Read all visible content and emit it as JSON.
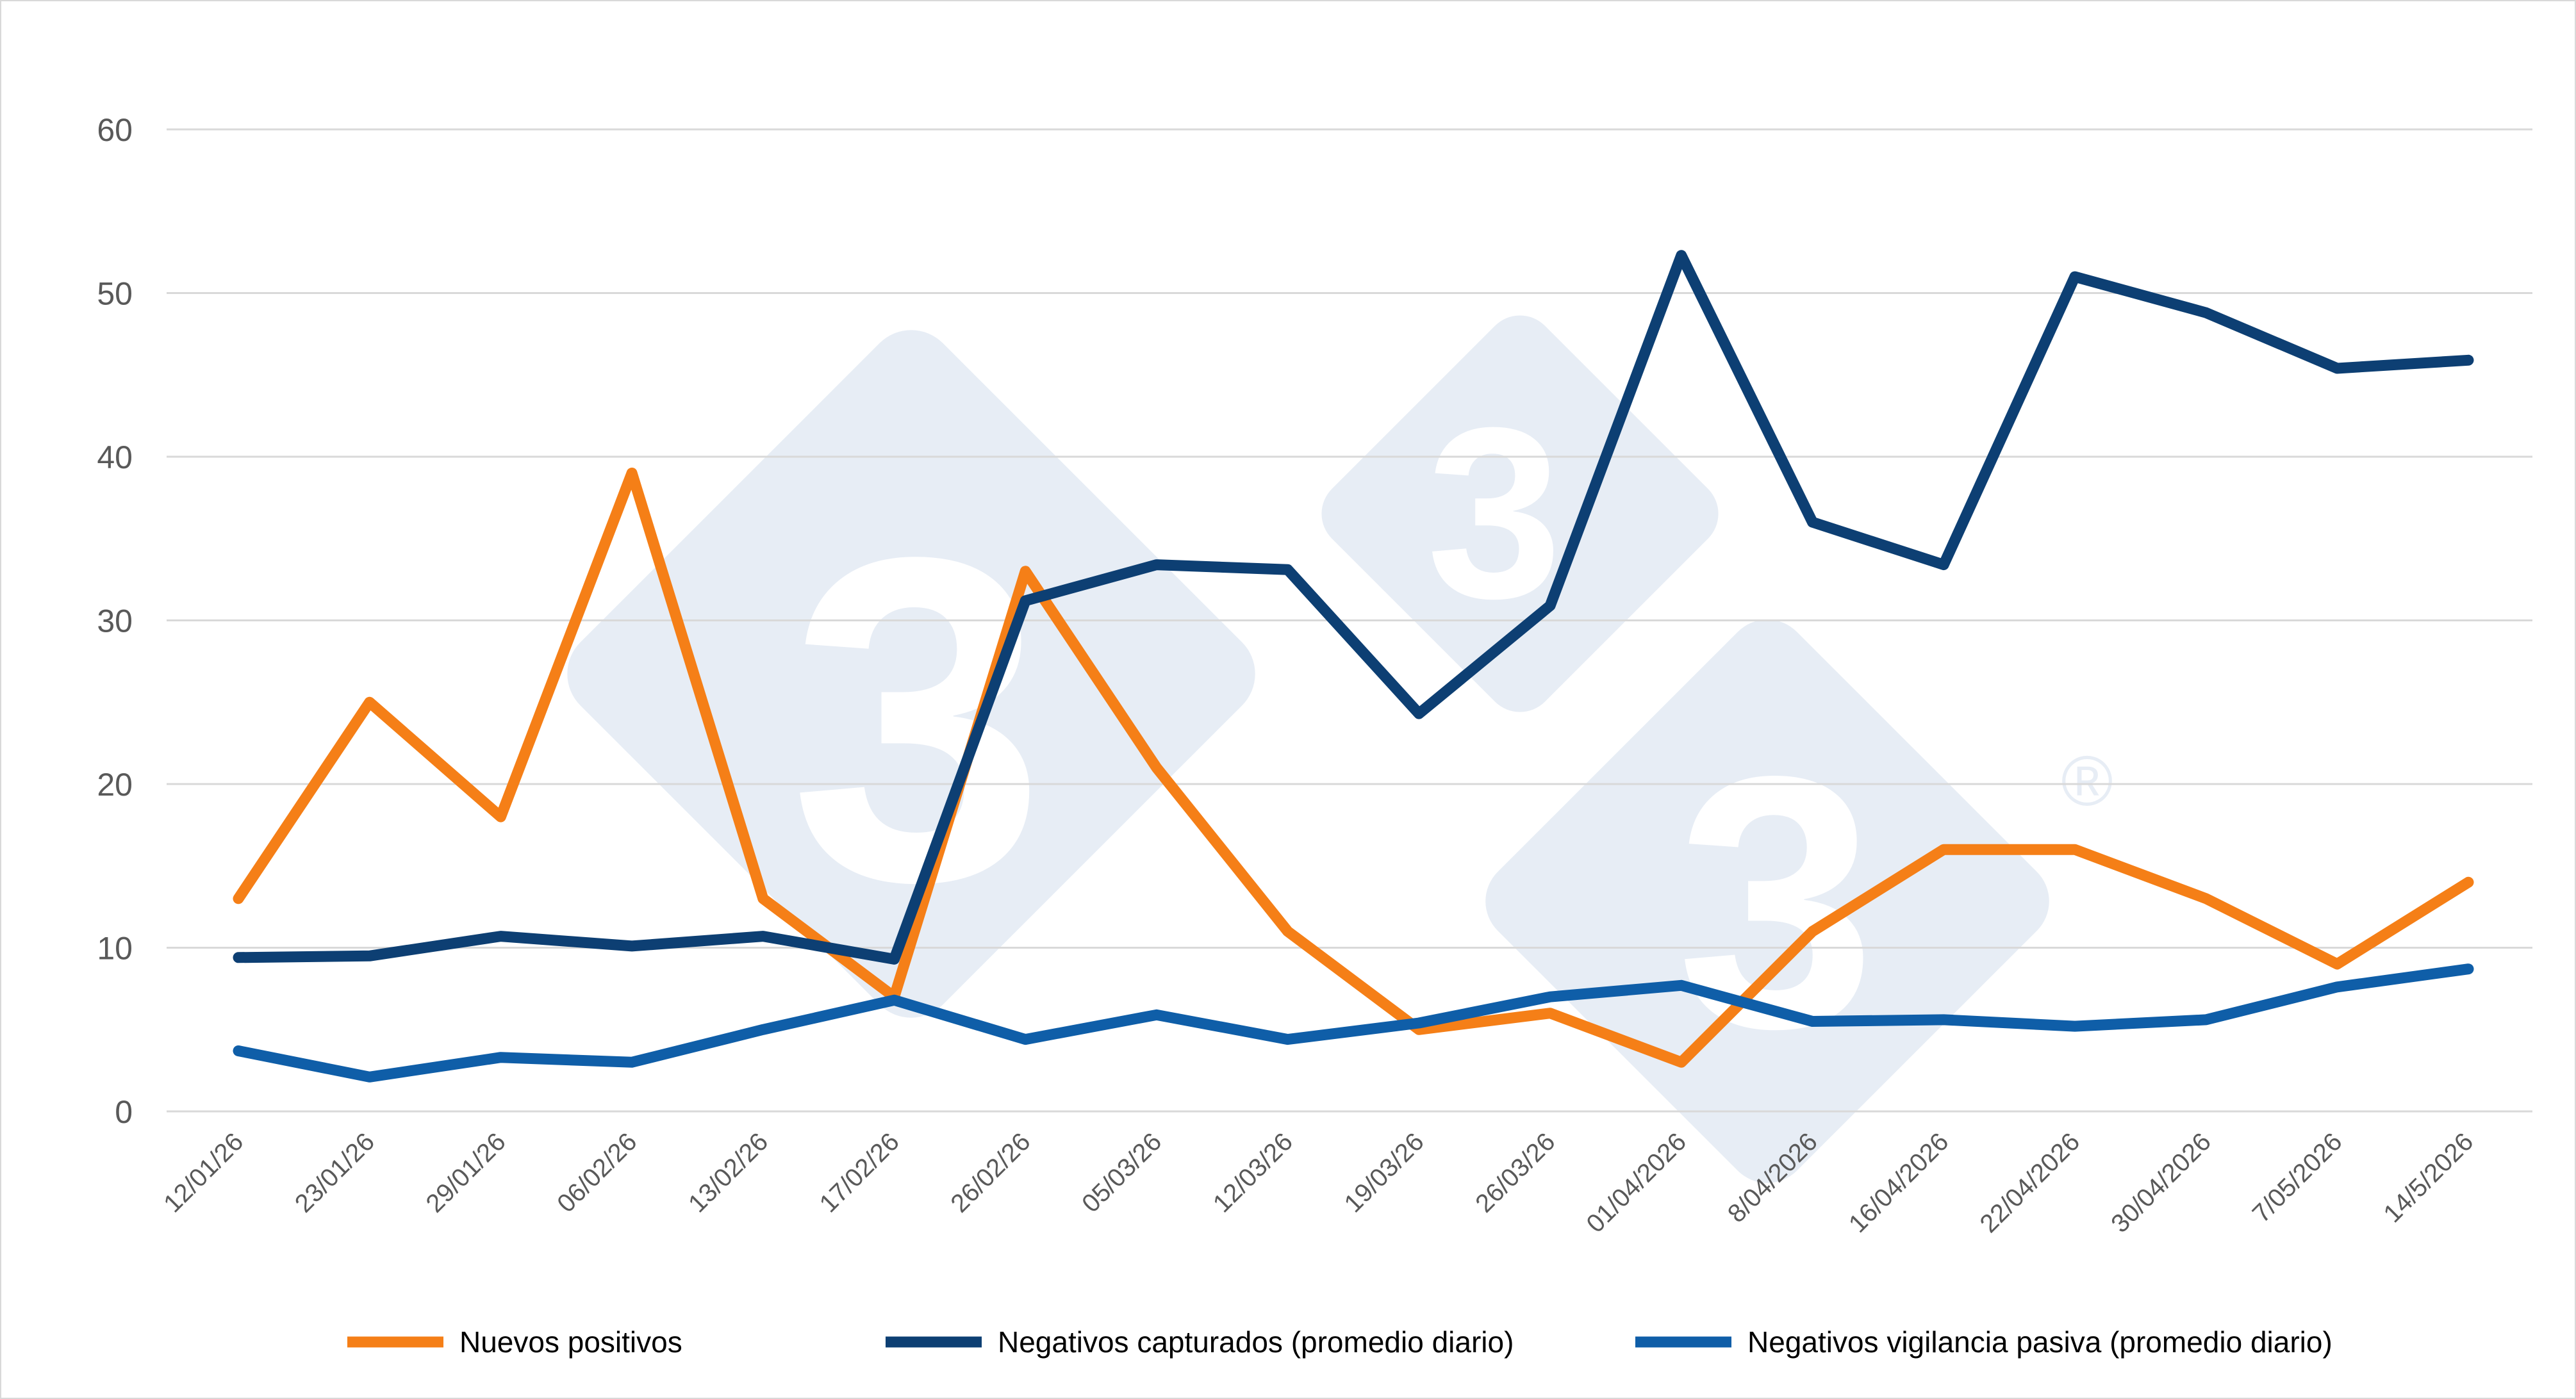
{
  "chart_data": {
    "type": "line",
    "categories": [
      "12/01/26",
      "23/01/26",
      "29/01/26",
      "06/02/26",
      "13/02/26",
      "17/02/26",
      "26/02/26",
      "05/03/26",
      "12/03/26",
      "19/03/26",
      "26/03/26",
      "01/04/2026",
      "8/04/2026",
      "16/04/2026",
      "22/04/2026",
      "30/04/2026",
      "7/05/2026",
      "14/5/2026"
    ],
    "ylim": [
      0,
      60
    ],
    "yticks": [
      0,
      10,
      20,
      30,
      40,
      50,
      60
    ],
    "grid": true,
    "legend_position": "bottom",
    "series": [
      {
        "name": "Nuevos positivos",
        "color": "#f57f17",
        "values": [
          13,
          25,
          18,
          39,
          13,
          7,
          33,
          21,
          11,
          5,
          6,
          3,
          11,
          16,
          16,
          13,
          9,
          14
        ]
      },
      {
        "name": "Negativos capturados (promedio diario)",
        "color": "#0d3f73",
        "values": [
          9.4,
          9.5,
          10.7,
          10.1,
          10.7,
          9.3,
          31.2,
          33.4,
          33.1,
          24.3,
          30.9,
          52.3,
          36,
          33.4,
          51,
          48.8,
          45.4,
          45.9
        ]
      },
      {
        "name": "Negativos vigilancia pasiva (promedio diario)",
        "color": "#0f5ea8",
        "values": [
          3.7,
          2.1,
          3.3,
          3,
          5,
          6.8,
          4.4,
          5.9,
          4.4,
          5.4,
          7,
          7.7,
          5.5,
          5.6,
          5.2,
          5.6,
          7.6,
          8.7
        ]
      }
    ]
  },
  "watermark": {
    "digit": "3",
    "registered_mark": "®",
    "color": "#e7edf5"
  }
}
